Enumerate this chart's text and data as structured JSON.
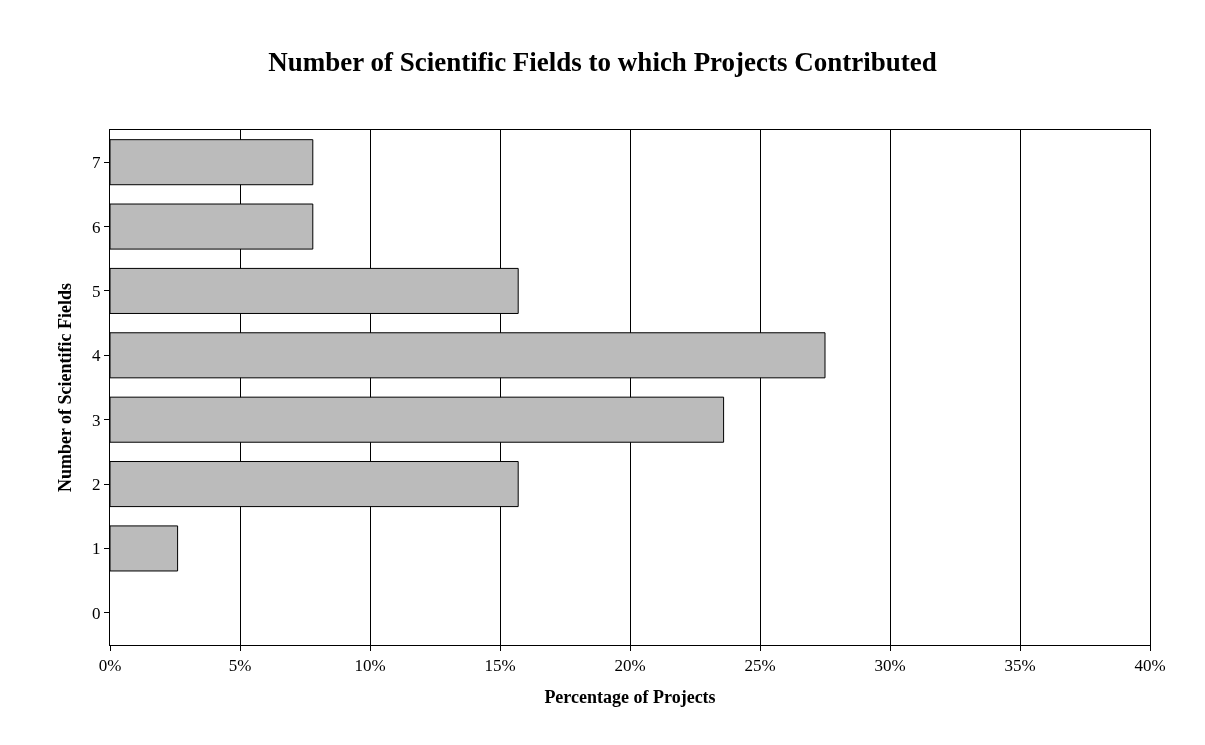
{
  "chart_data": {
    "type": "bar",
    "orientation": "horizontal",
    "title": "Number of Scientific Fields to which Projects Contributed",
    "xlabel": "Percentage of Projects",
    "ylabel": "Number of Scientific Fields",
    "categories": [
      "7",
      "6",
      "5",
      "4",
      "3",
      "2",
      "1",
      "0"
    ],
    "values": [
      7.8,
      7.8,
      15.7,
      27.5,
      23.6,
      15.7,
      2.6,
      0
    ],
    "color": "#bbbbbb",
    "xlim": [
      0,
      40
    ],
    "xticks": [
      {
        "value": 0,
        "label": "0%"
      },
      {
        "value": 5,
        "label": "5%"
      },
      {
        "value": 10,
        "label": "10%"
      },
      {
        "value": 15,
        "label": "15%"
      },
      {
        "value": 20,
        "label": "20%"
      },
      {
        "value": 25,
        "label": "25%"
      },
      {
        "value": 30,
        "label": "30%"
      },
      {
        "value": 35,
        "label": "35%"
      },
      {
        "value": 40,
        "label": "40%"
      }
    ],
    "grid": "x"
  }
}
